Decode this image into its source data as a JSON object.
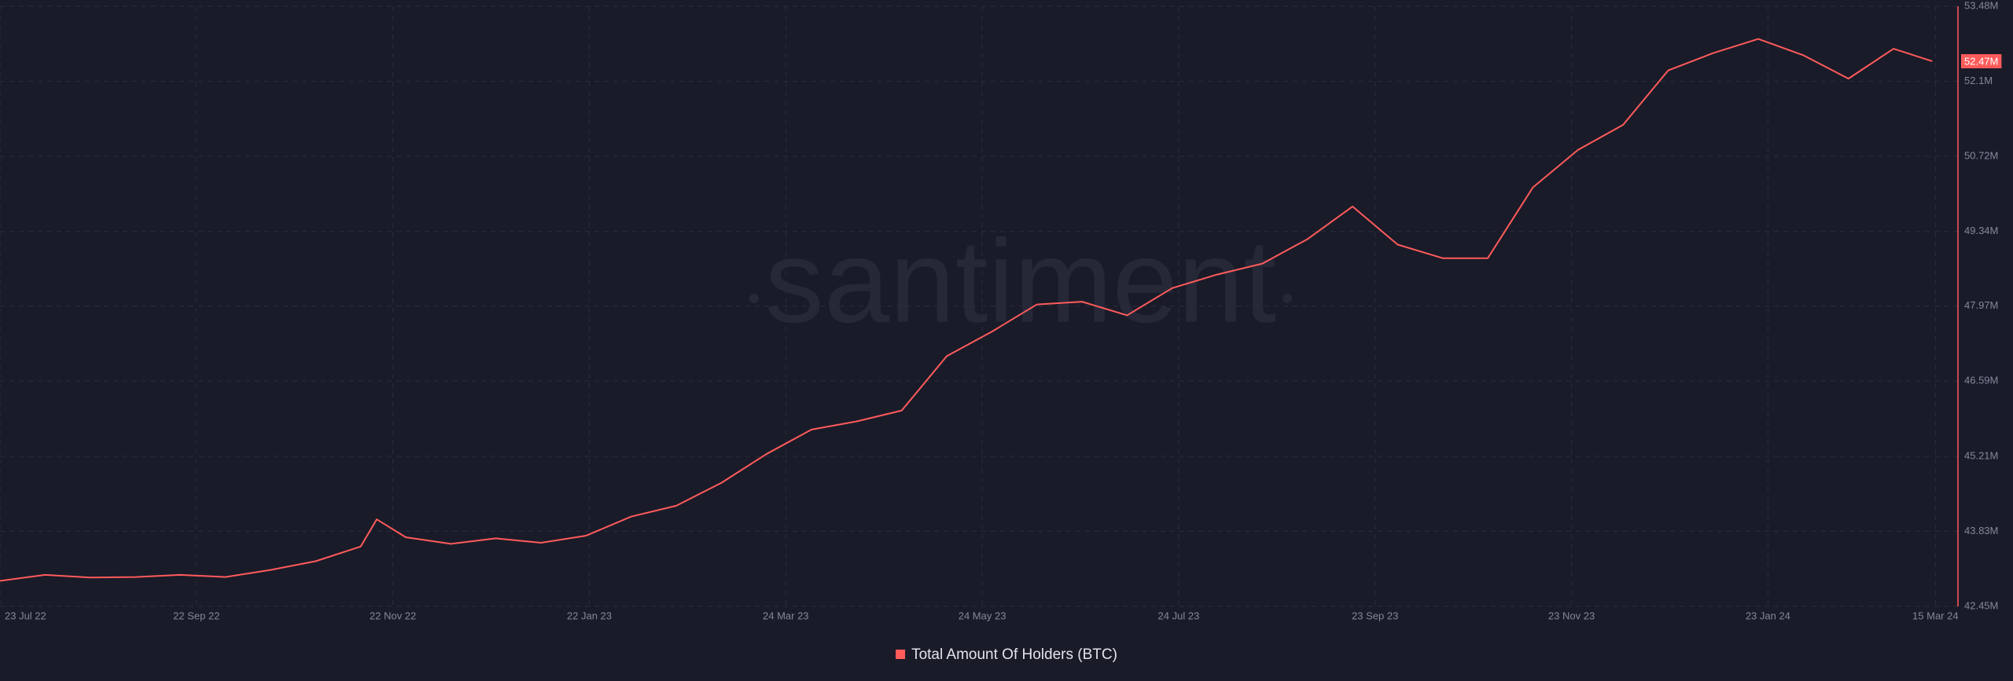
{
  "chart_data": {
    "type": "line",
    "watermark": "santiment",
    "x": [
      "2022-07-23",
      "2022-08-06",
      "2022-08-20",
      "2022-09-03",
      "2022-09-17",
      "2022-10-01",
      "2022-10-15",
      "2022-10-29",
      "2022-11-12",
      "2022-11-17",
      "2022-11-26",
      "2022-12-10",
      "2022-12-24",
      "2023-01-07",
      "2023-01-21",
      "2023-02-04",
      "2023-02-18",
      "2023-03-04",
      "2023-03-18",
      "2023-04-01",
      "2023-04-15",
      "2023-04-29",
      "2023-05-13",
      "2023-05-27",
      "2023-06-10",
      "2023-06-24",
      "2023-07-08",
      "2023-07-22",
      "2023-08-05",
      "2023-08-19",
      "2023-09-02",
      "2023-09-16",
      "2023-09-30",
      "2023-10-14",
      "2023-10-28",
      "2023-11-11",
      "2023-11-25",
      "2023-12-09",
      "2023-12-23",
      "2024-01-06",
      "2024-01-20",
      "2024-02-03",
      "2024-02-17",
      "2024-03-02",
      "2024-03-14"
    ],
    "series": [
      {
        "name": "Total Amount Of Holders (BTC)",
        "color": "#ff5b5b",
        "values": [
          42920000,
          43030000,
          42980000,
          42990000,
          43030000,
          42990000,
          43120000,
          43280000,
          43550000,
          44050000,
          43720000,
          43600000,
          43700000,
          43620000,
          43750000,
          44100000,
          44300000,
          44720000,
          45250000,
          45700000,
          45850000,
          46050000,
          47050000,
          47500000,
          48000000,
          48050000,
          47800000,
          48300000,
          48550000,
          48750000,
          49200000,
          49800000,
          49100000,
          48850000,
          48850000,
          50150000,
          50840000,
          51300000,
          52300000,
          52620000,
          52880000,
          52580000,
          52150000,
          52700000,
          52470000
        ],
        "value_labels": [
          null,
          null,
          null,
          null,
          null,
          null,
          null,
          null,
          null,
          null,
          null,
          null,
          null,
          null,
          null,
          null,
          null,
          null,
          null,
          null,
          null,
          null,
          null,
          null,
          null,
          null,
          null,
          null,
          null,
          null,
          null,
          null,
          null,
          null,
          null,
          null,
          null,
          null,
          null,
          null,
          null,
          null,
          null,
          null,
          "52.47M"
        ]
      }
    ],
    "xlim": [
      "2022-07-23",
      "2024-03-22"
    ],
    "xticks": [
      {
        "value": "2022-07-23",
        "label": "23 Jul 22"
      },
      {
        "value": "2022-09-22",
        "label": "22 Sep 22"
      },
      {
        "value": "2022-11-22",
        "label": "22 Nov 22"
      },
      {
        "value": "2023-01-22",
        "label": "22 Jan 23"
      },
      {
        "value": "2023-03-24",
        "label": "24 Mar 23"
      },
      {
        "value": "2023-05-24",
        "label": "24 May 23"
      },
      {
        "value": "2023-07-24",
        "label": "24 Jul 23"
      },
      {
        "value": "2023-09-23",
        "label": "23 Sep 23"
      },
      {
        "value": "2023-11-23",
        "label": "23 Nov 23"
      },
      {
        "value": "2024-01-23",
        "label": "23 Jan 24"
      },
      {
        "value": "2024-03-15",
        "label": "15 Mar 24"
      }
    ],
    "ylim": [
      42450000,
      53480000
    ],
    "yticks": [
      {
        "value": 42450000,
        "label": "42.45M"
      },
      {
        "value": 43830000,
        "label": "43.83M"
      },
      {
        "value": 45210000,
        "label": "45.21M"
      },
      {
        "value": 46590000,
        "label": "46.59M"
      },
      {
        "value": 47970000,
        "label": "47.97M"
      },
      {
        "value": 49340000,
        "label": "49.34M"
      },
      {
        "value": 50720000,
        "label": "50.72M"
      },
      {
        "value": 52100000,
        "label": "52.1M"
      },
      {
        "value": 53480000,
        "label": "53.48M"
      }
    ],
    "grid": true,
    "legend": "bottom"
  }
}
